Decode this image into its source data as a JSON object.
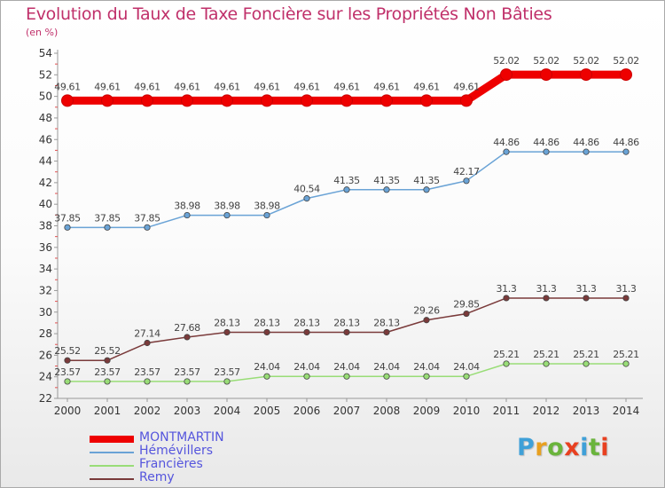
{
  "header": {
    "title": "Evolution du Taux de Taxe Foncière sur les Propriétés Non Bâties",
    "subtitle": "(en %)"
  },
  "logo": {
    "text": "Proxiti",
    "colors": [
      "#3fa0d8",
      "#e8a020",
      "#6ab43c",
      "#e84020",
      "#3fa0d8",
      "#6ab43c",
      "#e84020"
    ]
  },
  "chart_data": {
    "type": "line",
    "title": "Evolution du Taux de Taxe Foncière sur les Propriétés Non Bâties",
    "ylabel": "(en %)",
    "xlabel": "",
    "x": [
      "2000",
      "2001",
      "2002",
      "2003",
      "2004",
      "2005",
      "2006",
      "2007",
      "2008",
      "2009",
      "2010",
      "2011",
      "2012",
      "2013",
      "2014"
    ],
    "ylim": [
      22,
      54
    ],
    "yticks": [
      "22",
      "24",
      "26",
      "28",
      "30",
      "32",
      "34",
      "36",
      "38",
      "40",
      "42",
      "44",
      "46",
      "48",
      "50",
      "52",
      "54"
    ],
    "grid": false,
    "legend_position": "bottom-left",
    "series": [
      {
        "name": "MONTMARTIN",
        "color": "#ee0000",
        "values": [
          49.61,
          49.61,
          49.61,
          49.61,
          49.61,
          49.61,
          49.61,
          49.61,
          49.61,
          49.61,
          49.61,
          52.02,
          52.02,
          52.02,
          52.02
        ],
        "labels": [
          "49.61",
          "49.61",
          "49.61",
          "49.61",
          "49.61",
          "49.61",
          "49.61",
          "49.61",
          "49.61",
          "49.61",
          "49.61",
          "52.02",
          "52.02",
          "52.02",
          "52.02"
        ]
      },
      {
        "name": "Hémévillers",
        "color": "#6aa3d6",
        "values": [
          37.85,
          37.85,
          37.85,
          38.98,
          38.98,
          38.98,
          40.54,
          41.35,
          41.35,
          41.35,
          42.17,
          44.86,
          44.86,
          44.86,
          44.86
        ],
        "labels": [
          "37.85",
          "37.85",
          "37.85",
          "38.98",
          "38.98",
          "38.98",
          "40.54",
          "41.35",
          "41.35",
          "41.35",
          "42.17",
          "44.86",
          "44.86",
          "44.86",
          "44.86"
        ]
      },
      {
        "name": "Francières",
        "color": "#99dd77",
        "values": [
          23.57,
          23.57,
          23.57,
          23.57,
          23.57,
          24.04,
          24.04,
          24.04,
          24.04,
          24.04,
          24.04,
          25.21,
          25.21,
          25.21,
          25.21
        ],
        "labels": [
          "23.57",
          "23.57",
          "23.57",
          "23.57",
          "23.57",
          "24.04",
          "24.04",
          "24.04",
          "24.04",
          "24.04",
          "24.04",
          "25.21",
          "25.21",
          "25.21",
          "25.21"
        ]
      },
      {
        "name": "Remy",
        "color": "#7a3a3a",
        "values": [
          25.52,
          25.52,
          27.14,
          27.68,
          28.13,
          28.13,
          28.13,
          28.13,
          28.13,
          29.26,
          29.85,
          31.3,
          31.3,
          31.3,
          31.3
        ],
        "labels": [
          "25.52",
          "25.52",
          "27.14",
          "27.68",
          "28.13",
          "28.13",
          "28.13",
          "28.13",
          "28.13",
          "29.26",
          "29.85",
          "31.3",
          "31.3",
          "31.3",
          "31.3"
        ]
      }
    ]
  }
}
